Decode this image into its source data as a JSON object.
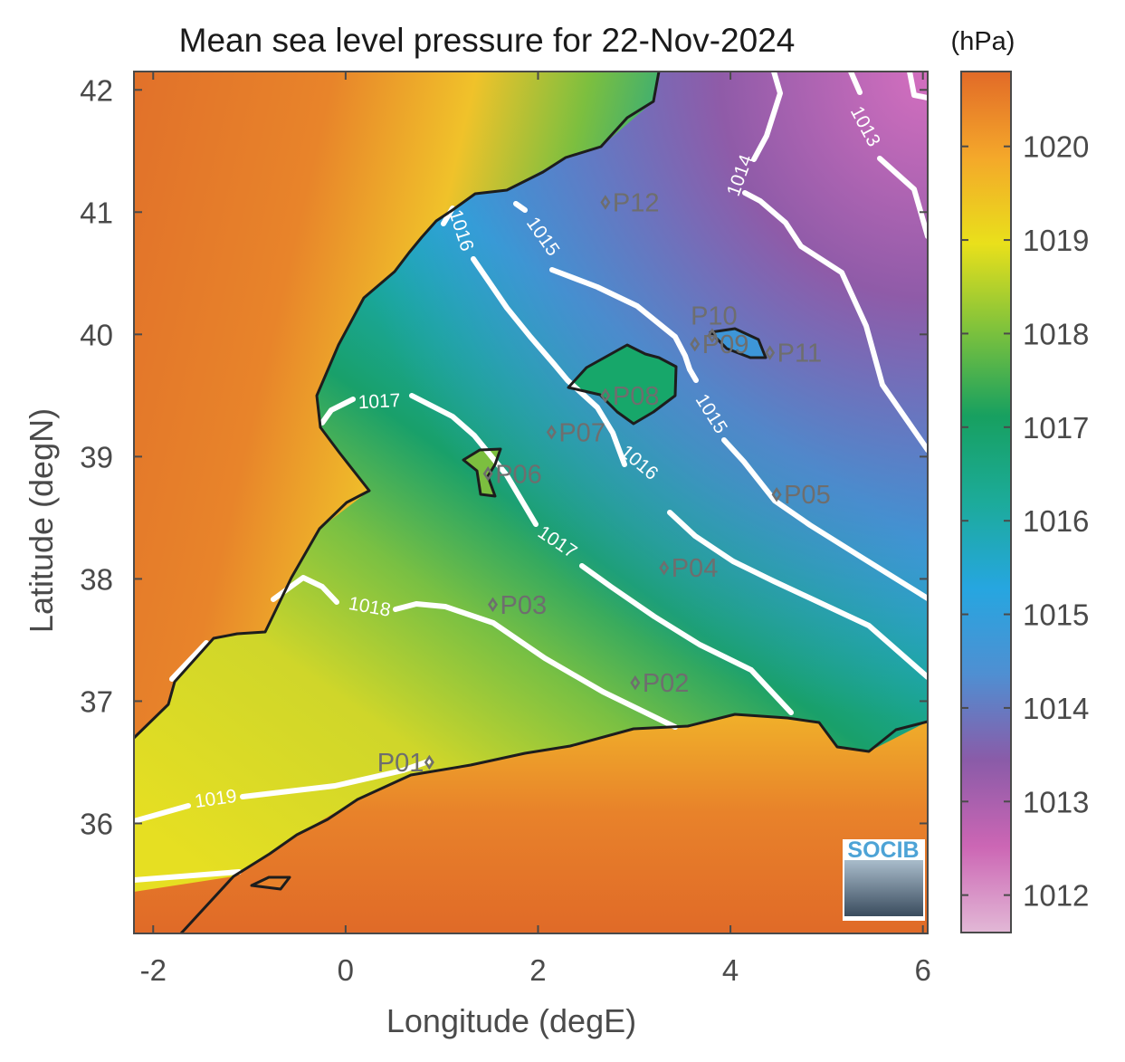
{
  "title": "Mean sea level pressure for 22-Nov-2024",
  "xlabel": "Longitude (degE)",
  "ylabel": "Latitude (degN)",
  "colorbar": {
    "unit": "(hPa)",
    "range": [
      1011.6,
      1020.8
    ],
    "ticks": [
      "1012",
      "1013",
      "1014",
      "1015",
      "1016",
      "1017",
      "1018",
      "1019",
      "1020"
    ],
    "colors": [
      "#e2b8d6",
      "#cc66b4",
      "#8a5ba8",
      "#4f8fd2",
      "#26a6e0",
      "#1cab9a",
      "#17a060",
      "#7ec23c",
      "#e9e01b",
      "#f4a82a",
      "#e26a28"
    ]
  },
  "logo": {
    "text": "SOCIB"
  },
  "chart_data": {
    "type": "map",
    "xlim": [
      -2.2,
      6.05
    ],
    "ylim": [
      35.1,
      42.15
    ],
    "xticks": [
      "-2",
      "0",
      "2",
      "4",
      "6"
    ],
    "yticks": [
      "36",
      "37",
      "38",
      "39",
      "40",
      "41",
      "42"
    ],
    "contour_labels": [
      {
        "text": "1019",
        "lon": -1.35,
        "lat": 36.2,
        "angle": -8
      },
      {
        "text": "1018",
        "lon": 0.25,
        "lat": 37.77,
        "angle": 10
      },
      {
        "text": "1017",
        "lon": 0.35,
        "lat": 39.45,
        "angle": -3
      },
      {
        "text": "1017",
        "lon": 2.2,
        "lat": 38.3,
        "angle": 34
      },
      {
        "text": "1016",
        "lon": 1.2,
        "lat": 40.85,
        "angle": 72
      },
      {
        "text": "1016",
        "lon": 3.05,
        "lat": 38.95,
        "angle": 40
      },
      {
        "text": "1015",
        "lon": 2.05,
        "lat": 40.8,
        "angle": 55
      },
      {
        "text": "1015",
        "lon": 3.8,
        "lat": 39.35,
        "angle": 58
      },
      {
        "text": "1014",
        "lon": 4.1,
        "lat": 41.3,
        "angle": -70
      },
      {
        "text": "1013",
        "lon": 5.4,
        "lat": 41.7,
        "angle": 62
      }
    ],
    "stations": [
      {
        "name": "P01",
        "lon": 0.87,
        "lat": 36.5
      },
      {
        "name": "P02",
        "lon": 3.01,
        "lat": 37.15
      },
      {
        "name": "P03",
        "lon": 1.53,
        "lat": 37.79
      },
      {
        "name": "P04",
        "lon": 3.31,
        "lat": 38.09
      },
      {
        "name": "P05",
        "lon": 4.48,
        "lat": 38.69
      },
      {
        "name": "P06",
        "lon": 1.48,
        "lat": 38.86
      },
      {
        "name": "P07",
        "lon": 2.14,
        "lat": 39.2
      },
      {
        "name": "P08",
        "lon": 2.7,
        "lat": 39.5
      },
      {
        "name": "P09",
        "lon": 3.63,
        "lat": 39.92
      },
      {
        "name": "P10",
        "lon": 3.81,
        "lat": 39.99
      },
      {
        "name": "P11",
        "lon": 4.41,
        "lat": 39.85
      },
      {
        "name": "P12",
        "lon": 2.7,
        "lat": 41.08
      }
    ]
  }
}
